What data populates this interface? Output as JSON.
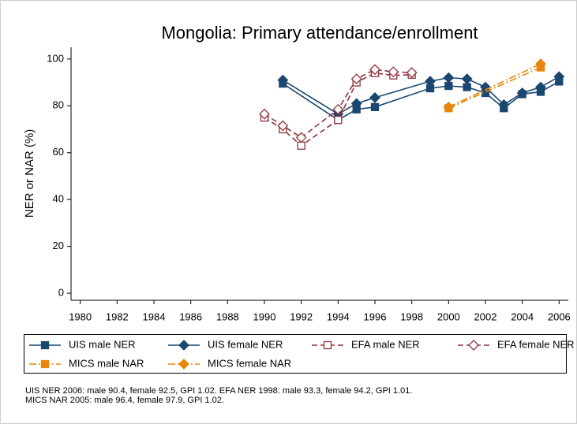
{
  "chart_data": {
    "type": "line",
    "title": "Mongolia: Primary attendance/enrollment",
    "ylabel": "NER or NAR (%)",
    "xlim": [
      1979.5,
      2006.5
    ],
    "xticks": [
      1980,
      1982,
      1984,
      1986,
      1988,
      1990,
      1992,
      1994,
      1996,
      1998,
      2000,
      2002,
      2004,
      2006
    ],
    "ylim": [
      -3,
      105
    ],
    "yticks": [
      0,
      20,
      40,
      60,
      80,
      100
    ],
    "series": [
      {
        "name": "UIS male NER",
        "color": "#1a476f",
        "marker": "square",
        "filled": true,
        "dash": "none",
        "x": [
          1991,
          1994,
          1995,
          1996,
          1999,
          2000,
          2001,
          2002,
          2003,
          2004,
          2005,
          2006
        ],
        "values": [
          89.5,
          74,
          78.5,
          79.5,
          87.5,
          88.5,
          88,
          85.5,
          79,
          85,
          86,
          90.4
        ]
      },
      {
        "name": "UIS female NER",
        "color": "#1a476f",
        "marker": "diamond",
        "filled": true,
        "dash": "none",
        "x": [
          1991,
          1994,
          1995,
          1996,
          1999,
          2000,
          2001,
          2002,
          2003,
          2004,
          2005,
          2006
        ],
        "values": [
          91,
          76.5,
          81,
          83.5,
          90.5,
          92,
          91.5,
          88,
          80.5,
          85.5,
          88,
          92.5
        ]
      },
      {
        "name": "EFA male NER",
        "color": "#90353b",
        "marker": "square",
        "filled": false,
        "dash": "7,4",
        "x": [
          1990,
          1991,
          1992,
          1994,
          1995,
          1996,
          1997,
          1998
        ],
        "values": [
          75,
          70,
          63,
          74,
          90,
          94,
          93,
          93.3
        ]
      },
      {
        "name": "EFA female NER",
        "color": "#90353b",
        "marker": "diamond",
        "filled": false,
        "dash": "7,4",
        "x": [
          1990,
          1991,
          1992,
          1994,
          1995,
          1996,
          1997,
          1998
        ],
        "values": [
          76.5,
          71.5,
          66.5,
          78.5,
          91.5,
          95.5,
          94.5,
          94.2
        ]
      },
      {
        "name": "MICS male NAR",
        "color": "#e8850c",
        "marker": "square",
        "filled": true,
        "dash": "9,3,2,3",
        "x": [
          2000,
          2005
        ],
        "values": [
          79,
          96.4
        ]
      },
      {
        "name": "MICS female NAR",
        "color": "#e8850c",
        "marker": "diamond",
        "filled": true,
        "dash": "9,3,2,3",
        "x": [
          2000,
          2005
        ],
        "values": [
          79.5,
          97.9
        ]
      }
    ],
    "note": [
      "UIS NER 2006: male 90.4, female 92.5, GPI 1.02. EFA NER 1998: male 93.3, female 94.2, GPI 1.01.",
      "MICS NAR 2005: male 96.4, female 97.9, GPI 1.02."
    ]
  }
}
